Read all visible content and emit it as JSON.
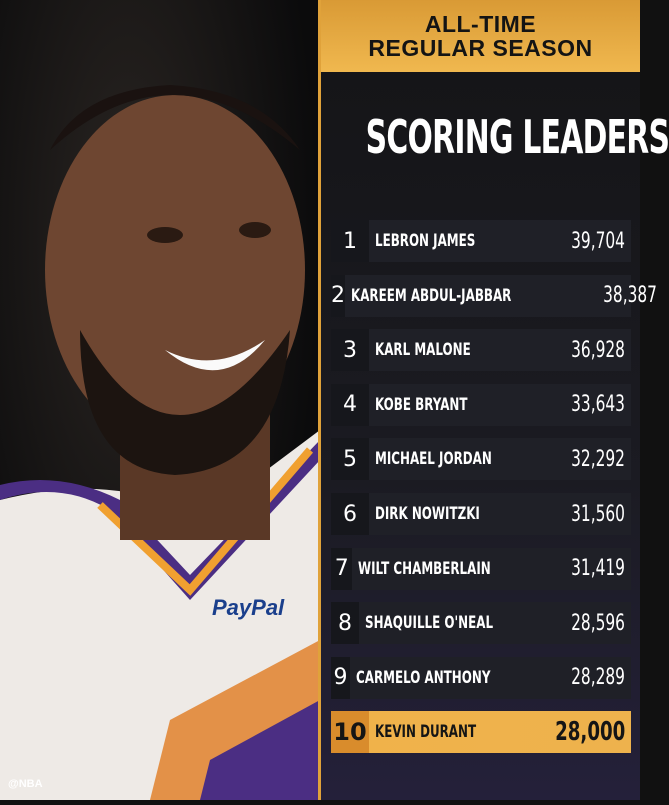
{
  "header": {
    "line1": "ALL-TIME",
    "line2": "REGULAR SEASON",
    "title": "SCORING LEADERS"
  },
  "leaders": [
    {
      "rank": "1",
      "name": "LEBRON JAMES",
      "points": "39,704"
    },
    {
      "rank": "2",
      "name": "KAREEM ABDUL-JABBAR",
      "points": "38,387"
    },
    {
      "rank": "3",
      "name": "KARL MALONE",
      "points": "36,928"
    },
    {
      "rank": "4",
      "name": "KOBE BRYANT",
      "points": "33,643"
    },
    {
      "rank": "5",
      "name": "MICHAEL JORDAN",
      "points": "32,292"
    },
    {
      "rank": "6",
      "name": "DIRK NOWITZKI",
      "points": "31,560"
    },
    {
      "rank": "7",
      "name": "WILT CHAMBERLAIN",
      "points": "31,419"
    },
    {
      "rank": "8",
      "name": "SHAQUILLE O'NEAL",
      "points": "28,596"
    },
    {
      "rank": "9",
      "name": "CARMELO ANTHONY",
      "points": "28,289"
    },
    {
      "rank": "10",
      "name": "KEVIN DURANT",
      "points": "28,000",
      "highlighted": true
    }
  ],
  "photo": {
    "jersey_sponsor": "PayPal"
  },
  "watermark": "@NBA",
  "colors": {
    "accent": "#f0b24a",
    "row": "#1f2027",
    "jersey_purple": "#4b2e83"
  }
}
